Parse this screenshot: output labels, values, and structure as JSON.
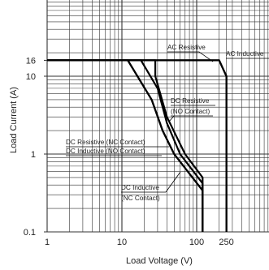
{
  "chart_data": {
    "type": "line",
    "xlabel": "Load Voltage (V)",
    "ylabel": "Load Current (A)",
    "x_scale": "log",
    "y_scale": "log",
    "xlim": [
      1,
      1000
    ],
    "ylim": [
      0.1,
      100
    ],
    "grid": true,
    "x_ticks": [
      {
        "value": 1,
        "label": "1"
      },
      {
        "value": 10,
        "label": "10"
      },
      {
        "value": 100,
        "label": "100"
      },
      {
        "value": 250,
        "label": "250"
      }
    ],
    "y_ticks": [
      {
        "value": 0.1,
        "label": "0.1"
      },
      {
        "value": 1,
        "label": "1"
      },
      {
        "value": 10,
        "label": "10"
      },
      {
        "value": 16,
        "label": "16"
      }
    ],
    "series": [
      {
        "name": "AC Resistive",
        "points": [
          [
            1,
            16
          ],
          [
            200,
            16
          ],
          [
            250,
            10
          ],
          [
            250,
            0.1
          ]
        ]
      },
      {
        "name": "AC Inductive",
        "points": [
          [
            1,
            16
          ],
          [
            200,
            16
          ],
          [
            250,
            10
          ],
          [
            250,
            0.1
          ]
        ]
      },
      {
        "name": "DC Resistive (NO Contact)",
        "points": [
          [
            1,
            16
          ],
          [
            28,
            16
          ],
          [
            28,
            10
          ],
          [
            40,
            3
          ],
          [
            70,
            1
          ],
          [
            120,
            0.5
          ],
          [
            120,
            0.1
          ]
        ]
      },
      {
        "name": "DC Resistive (NC Contact)",
        "points": [
          [
            1,
            16
          ],
          [
            18,
            16
          ],
          [
            30,
            7
          ],
          [
            40,
            2.5
          ],
          [
            60,
            1
          ],
          [
            120,
            0.42
          ],
          [
            120,
            0.1
          ]
        ]
      },
      {
        "name": "DC Inductive (NO Contact)",
        "points": [
          [
            1,
            16
          ],
          [
            12,
            16
          ],
          [
            25,
            5
          ],
          [
            35,
            2
          ],
          [
            50,
            1
          ],
          [
            120,
            0.34
          ],
          [
            120,
            0.1
          ]
        ]
      },
      {
        "name": "DC Inductive (NC Contact)",
        "points": [
          [
            1,
            16
          ],
          [
            12,
            16
          ],
          [
            25,
            5
          ],
          [
            35,
            2
          ],
          [
            50,
            1
          ],
          [
            120,
            0.34
          ],
          [
            120,
            0.1
          ]
        ]
      }
    ],
    "annotations": [
      {
        "text": "AC Resistive"
      },
      {
        "text": "AC Inductive"
      },
      {
        "text": "DC Resistive"
      },
      {
        "text": "(NO Contact)"
      },
      {
        "text": "DC Resistive (NC Contact)"
      },
      {
        "text": "DC Inductive (NO Contact)"
      },
      {
        "text": "DC Inductive"
      },
      {
        "text": "(NC Contact)"
      }
    ]
  }
}
